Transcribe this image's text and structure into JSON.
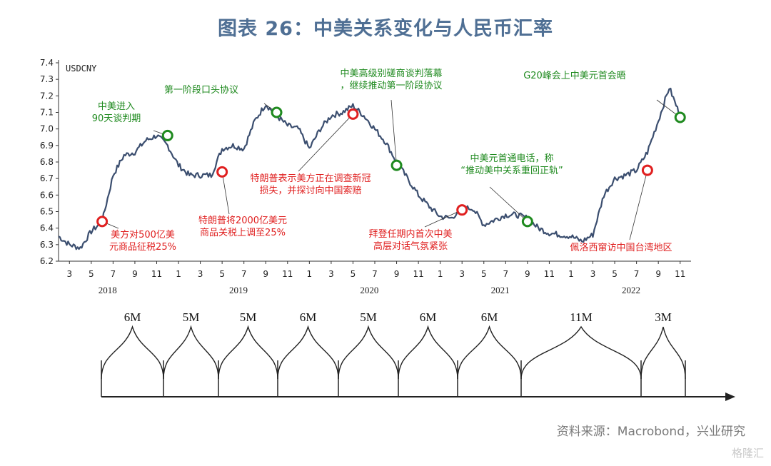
{
  "title": "图表 26：中美关系变化与人民币汇率",
  "source": "资料来源：Macrobond，兴业研究",
  "watermark": "格隆汇",
  "colors": {
    "line": "#3b4e6f",
    "red_marker": "#e02020",
    "green_marker": "#1f8a1f",
    "green_text": "#1f8a1f",
    "red_text": "#e02020",
    "title": "#4f6f94"
  },
  "chart_data": {
    "type": "line",
    "series": [
      {
        "name": "USDCNY",
        "x": [
          "2018-02",
          "2018-03",
          "2018-04",
          "2018-05",
          "2018-06",
          "2018-07",
          "2018-08",
          "2018-09",
          "2018-10",
          "2018-11",
          "2018-12",
          "2019-01",
          "2019-02",
          "2019-03",
          "2019-04",
          "2019-05",
          "2019-06",
          "2019-07",
          "2019-08",
          "2019-09",
          "2019-10",
          "2019-11",
          "2019-12",
          "2020-01",
          "2020-02",
          "2020-03",
          "2020-04",
          "2020-05",
          "2020-06",
          "2020-07",
          "2020-08",
          "2020-09",
          "2020-10",
          "2020-11",
          "2020-12",
          "2021-01",
          "2021-02",
          "2021-03",
          "2021-04",
          "2021-05",
          "2021-06",
          "2021-07",
          "2021-08",
          "2021-09",
          "2021-10",
          "2021-11",
          "2021-12",
          "2022-01",
          "2022-02",
          "2022-03",
          "2022-04",
          "2022-05",
          "2022-06",
          "2022-07",
          "2022-08",
          "2022-09",
          "2022-10",
          "2022-11"
        ],
        "values": [
          6.35,
          6.3,
          6.28,
          6.38,
          6.44,
          6.72,
          6.84,
          6.86,
          6.93,
          6.96,
          6.9,
          6.78,
          6.72,
          6.72,
          6.72,
          6.88,
          6.9,
          6.88,
          7.05,
          7.15,
          7.08,
          7.02,
          7.0,
          6.88,
          7.0,
          7.08,
          7.1,
          7.14,
          7.08,
          7.0,
          6.92,
          6.8,
          6.7,
          6.6,
          6.53,
          6.47,
          6.46,
          6.52,
          6.52,
          6.42,
          6.45,
          6.48,
          6.48,
          6.46,
          6.4,
          6.37,
          6.36,
          6.35,
          6.32,
          6.36,
          6.6,
          6.7,
          6.72,
          6.75,
          6.86,
          7.05,
          7.25,
          7.08
        ]
      }
    ],
    "series_label": "USDCNY",
    "ylim": [
      6.2,
      7.4
    ],
    "yticks": [
      "6.2",
      "6.3",
      "6.4",
      "6.5",
      "6.6",
      "6.7",
      "6.8",
      "6.9",
      "7.0",
      "7.1",
      "7.2",
      "7.3",
      "7.4"
    ],
    "xticks": [
      "3",
      "5",
      "7",
      "9",
      "11",
      "1",
      "3",
      "5",
      "7",
      "9",
      "11",
      "1",
      "3",
      "5",
      "7",
      "9",
      "11",
      "1",
      "3",
      "5",
      "7",
      "9",
      "11",
      "1",
      "3",
      "5",
      "7",
      "9",
      "11"
    ],
    "years": [
      "2018",
      "2019",
      "2020",
      "2021",
      "2022"
    ],
    "markers": [
      {
        "date": "2018-06",
        "value": 6.44,
        "color": "red"
      },
      {
        "date": "2018-12",
        "value": 6.96,
        "color": "green"
      },
      {
        "date": "2019-05",
        "value": 6.74,
        "color": "red"
      },
      {
        "date": "2019-10",
        "value": 7.1,
        "color": "green"
      },
      {
        "date": "2020-05",
        "value": 7.09,
        "color": "red"
      },
      {
        "date": "2020-09",
        "value": 6.78,
        "color": "green"
      },
      {
        "date": "2021-03",
        "value": 6.51,
        "color": "red"
      },
      {
        "date": "2021-09",
        "value": 6.44,
        "color": "green"
      },
      {
        "date": "2022-08",
        "value": 6.75,
        "color": "red"
      },
      {
        "date": "2022-11",
        "value": 7.07,
        "color": "green"
      }
    ],
    "annotations": [
      {
        "lines": [
          "中美进入",
          "90天谈判期"
        ],
        "color": "green"
      },
      {
        "lines": [
          "第一阶段口头协议"
        ],
        "color": "green"
      },
      {
        "lines": [
          "中美高级别磋商谈判落幕",
          "，继续推动第一阶段协议"
        ],
        "color": "green"
      },
      {
        "lines": [
          "中美元首通电话，称",
          "“推动美中关系重回正轨”"
        ],
        "color": "green"
      },
      {
        "lines": [
          "G20峰会上中美元首会晤"
        ],
        "color": "green"
      },
      {
        "lines": [
          "美方对500亿美",
          "元商品征税25%"
        ],
        "color": "red"
      },
      {
        "lines": [
          "特朗普将2000亿美元",
          "商品关税上调至25%"
        ],
        "color": "red"
      },
      {
        "lines": [
          "特朗普表示美方正在调查新冠",
          "损失，并探讨向中国索赔"
        ],
        "color": "red"
      },
      {
        "lines": [
          "拜登任期内首次中美",
          "高层对话气氛紧张"
        ],
        "color": "red"
      },
      {
        "lines": [
          "佩洛西窜访中国台湾地区"
        ],
        "color": "red"
      }
    ],
    "durations": [
      "6M",
      "5M",
      "5M",
      "6M",
      "5M",
      "6M",
      "6M",
      "11M",
      "3M"
    ]
  }
}
